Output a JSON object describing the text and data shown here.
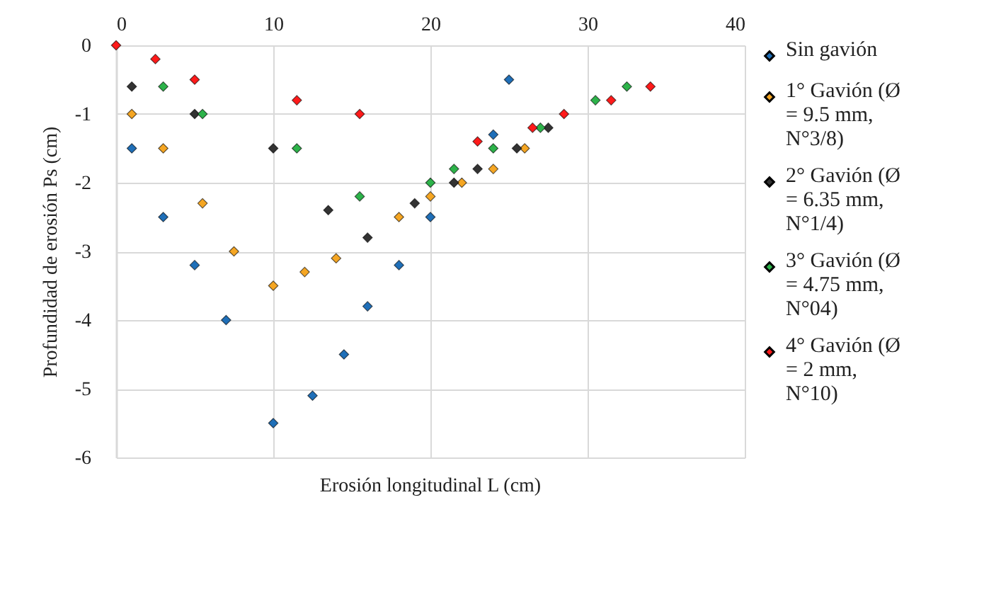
{
  "chart_data": {
    "type": "scatter",
    "xlabel": "Erosión longitudinal L (cm)",
    "ylabel": "Profundidad de erosión Ps (cm)",
    "xlim": [
      0,
      40
    ],
    "xticks": [
      0,
      10,
      20,
      30,
      40
    ],
    "ylim": [
      -6,
      0
    ],
    "yticks": [
      -6,
      -5,
      -4,
      -3,
      -2,
      -1,
      0
    ],
    "grid": true,
    "legend": "right",
    "marker": "diamond",
    "series": [
      {
        "name": "Sin gavión",
        "color": "#1f6fb8",
        "x": [
          1,
          3,
          5,
          7,
          10,
          12.5,
          14.5,
          16,
          18,
          20,
          24,
          25
        ],
        "values": [
          -1.5,
          -2.5,
          -3.2,
          -4,
          -5.5,
          -5.1,
          -4.5,
          -3.8,
          -3.2,
          -2.5,
          -1.3,
          -0.5
        ]
      },
      {
        "name": "1° Gavión (Ø = 9.5 mm, N°3/8)",
        "color": "#f5a623",
        "x": [
          1,
          3,
          5.5,
          7.5,
          10,
          12,
          14,
          18,
          20,
          22,
          24,
          26
        ],
        "values": [
          -1,
          -1.5,
          -2.3,
          -3,
          -3.5,
          -3.3,
          -3.1,
          -2.5,
          -2.2,
          -2,
          -1.8,
          -1.5
        ]
      },
      {
        "name": "2° Gavión (Ø = 6.35 mm, N°1/4)",
        "color": "#333333",
        "x": [
          1,
          5,
          10,
          13.5,
          16,
          19,
          21.5,
          23,
          25.5,
          27.5
        ],
        "values": [
          -0.6,
          -1,
          -1.5,
          -2.4,
          -2.8,
          -2.3,
          -2,
          -1.8,
          -1.5,
          -1.2
        ]
      },
      {
        "name": "3° Gavión (Ø = 4.75 mm, N°04)",
        "color": "#2db34a",
        "x": [
          3,
          5.5,
          11.5,
          15.5,
          20,
          21.5,
          24,
          27,
          30.5,
          32.5
        ],
        "values": [
          -0.6,
          -1,
          -1.5,
          -2.2,
          -2,
          -1.8,
          -1.5,
          -1.2,
          -0.8,
          -0.6
        ]
      },
      {
        "name": "4° Gavión (Ø = 2 mm, N°10)",
        "color": "#ff1a1a",
        "x": [
          0,
          2.5,
          5,
          11.5,
          15.5,
          23,
          26.5,
          28.5,
          31.5,
          34
        ],
        "values": [
          0,
          -0.2,
          -0.5,
          -0.8,
          -1,
          -1.4,
          -1.2,
          -1,
          -0.8,
          -0.6
        ]
      }
    ]
  }
}
